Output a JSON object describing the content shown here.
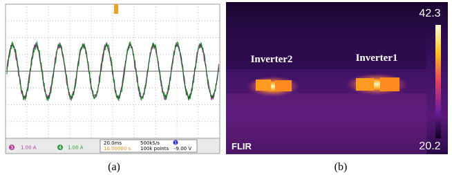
{
  "left_panel": {
    "channels": [
      {
        "number": "3",
        "scale": "1.00 A"
      },
      {
        "number": "4",
        "scale": "1.00 A"
      }
    ],
    "timebase": "20.0ms",
    "sample_rate": "500kS/s",
    "delay": "10.00000 s",
    "points": "100k points",
    "trigger_channel": "1",
    "trigger_level": "-9.00 V",
    "caption": "(a)"
  },
  "right_panel": {
    "labels": [
      "Inverter2",
      "Inverter1"
    ],
    "scale_max": "42.3",
    "scale_min": "20.2",
    "logo": "FLIR",
    "caption": "(b)"
  }
}
